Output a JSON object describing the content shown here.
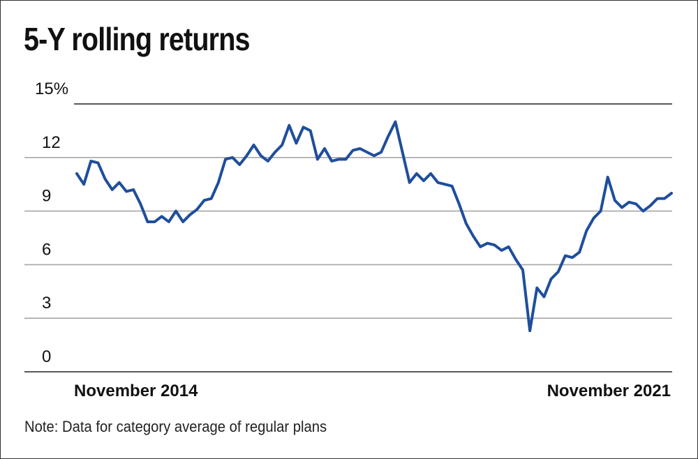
{
  "chart_data": {
    "type": "line",
    "title": "5-Y rolling returns",
    "note": "Note: Data for category average of regular plans",
    "ylabel": "",
    "xlabel": "",
    "ylim": [
      0,
      15
    ],
    "y_ticks": [
      {
        "value": 15,
        "label": "15%"
      },
      {
        "value": 12,
        "label": "12"
      },
      {
        "value": 9,
        "label": "9"
      },
      {
        "value": 6,
        "label": "6"
      },
      {
        "value": 3,
        "label": "3"
      },
      {
        "value": 0,
        "label": "0"
      }
    ],
    "x_range": [
      "November 2014",
      "November 2021"
    ],
    "x_labels": {
      "start": "November 2014",
      "end": "November 2021"
    },
    "grid": true,
    "line_color": "#1f4e9c",
    "grid_color": "#a6a6a6",
    "series": [
      {
        "values": [
          11.1,
          10.5,
          11.8,
          11.7,
          10.8,
          10.2,
          10.6,
          10.1,
          10.2,
          9.4,
          8.4,
          8.4,
          8.7,
          8.4,
          9.0,
          8.4,
          8.8,
          9.1,
          9.6,
          9.7,
          10.6,
          11.9,
          12.0,
          11.6,
          12.1,
          12.7,
          12.1,
          11.8,
          12.3,
          12.7,
          13.8,
          12.8,
          13.7,
          13.5,
          11.9,
          12.5,
          11.8,
          11.9,
          11.9,
          12.4,
          12.5,
          12.3,
          12.1,
          12.3,
          13.2,
          14.0,
          12.3,
          10.6,
          11.1,
          10.7,
          11.1,
          10.6,
          10.5,
          10.4,
          9.4,
          8.3,
          7.6,
          7.0,
          7.2,
          7.1,
          6.8,
          7.0,
          6.3,
          5.7,
          2.3,
          4.7,
          4.2,
          5.2,
          5.6,
          6.5,
          6.4,
          6.7,
          7.9,
          8.6,
          9.0,
          10.9,
          9.6,
          9.2,
          9.5,
          9.4,
          9.0,
          9.3,
          9.7,
          9.7,
          10.0
        ]
      }
    ]
  }
}
